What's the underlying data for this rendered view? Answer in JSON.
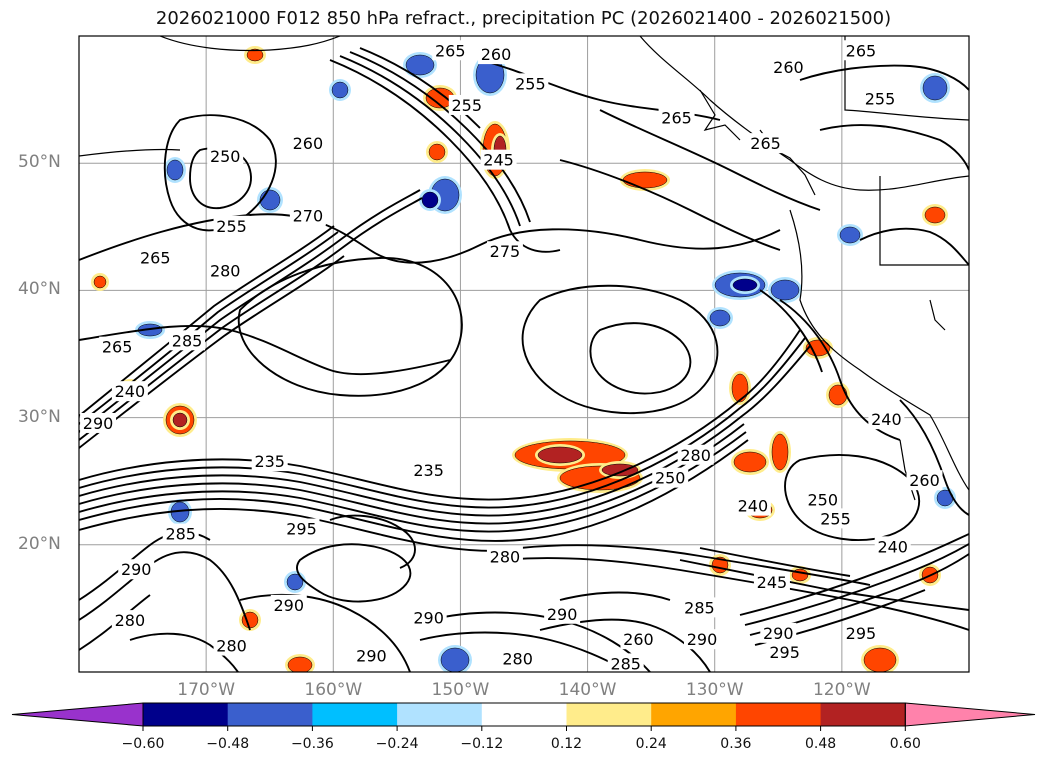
{
  "title": "2026021000 F012 850 hPa refract., precipitation PC (2026021400 - 2026021500)",
  "map": {
    "lon_range": [
      -180,
      -110
    ],
    "lat_range": [
      10,
      60
    ],
    "lat_labels": [
      {
        "lat": 50,
        "text": "50°N"
      },
      {
        "lat": 40,
        "text": "40°N"
      },
      {
        "lat": 30,
        "text": "30°N"
      },
      {
        "lat": 20,
        "text": "20°N"
      }
    ],
    "lon_labels": [
      {
        "lon": -170,
        "text": "170°W"
      },
      {
        "lon": -160,
        "text": "160°W"
      },
      {
        "lon": -150,
        "text": "150°W"
      },
      {
        "lon": -140,
        "text": "140°W"
      },
      {
        "lon": -130,
        "text": "130°W"
      },
      {
        "lon": -120,
        "text": "120°W"
      }
    ],
    "contour_labels": [
      {
        "text": "260",
        "lon": -147.2,
        "lat": 58.5
      },
      {
        "text": "255",
        "lon": -144.5,
        "lat": 56.2
      },
      {
        "text": "265",
        "lon": -150.8,
        "lat": 58.8
      },
      {
        "text": "260",
        "lon": -124.2,
        "lat": 57.5
      },
      {
        "text": "265",
        "lon": -118.5,
        "lat": 58.8
      },
      {
        "text": "255",
        "lon": -117.0,
        "lat": 55.0
      },
      {
        "text": "265",
        "lon": -133.0,
        "lat": 53.5
      },
      {
        "text": "265",
        "lon": -126.0,
        "lat": 51.5
      },
      {
        "text": "250",
        "lon": -168.5,
        "lat": 50.5
      },
      {
        "text": "260",
        "lon": -162.0,
        "lat": 51.5
      },
      {
        "text": "255",
        "lon": -149.5,
        "lat": 54.5
      },
      {
        "text": "245",
        "lon": -147.0,
        "lat": 50.2
      },
      {
        "text": "255",
        "lon": -168.0,
        "lat": 45.0
      },
      {
        "text": "265",
        "lon": -174.0,
        "lat": 42.5
      },
      {
        "text": "280",
        "lon": -168.5,
        "lat": 41.5
      },
      {
        "text": "270",
        "lon": -162.0,
        "lat": 45.8
      },
      {
        "text": "275",
        "lon": -146.5,
        "lat": 43.0
      },
      {
        "text": "265",
        "lon": -177.0,
        "lat": 35.5
      },
      {
        "text": "285",
        "lon": -171.5,
        "lat": 36.0
      },
      {
        "text": "290",
        "lon": -178.5,
        "lat": 29.5
      },
      {
        "text": "240",
        "lon": -176.0,
        "lat": 32.0
      },
      {
        "text": "235",
        "lon": -165.0,
        "lat": 26.5
      },
      {
        "text": "235",
        "lon": -152.5,
        "lat": 25.8
      },
      {
        "text": "240",
        "lon": -116.5,
        "lat": 29.8
      },
      {
        "text": "260",
        "lon": -113.5,
        "lat": 25.0
      },
      {
        "text": "280",
        "lon": -131.5,
        "lat": 27.0
      },
      {
        "text": "250",
        "lon": -133.5,
        "lat": 25.2
      },
      {
        "text": "240",
        "lon": -127.0,
        "lat": 23.0
      },
      {
        "text": "250",
        "lon": -121.5,
        "lat": 23.5
      },
      {
        "text": "255",
        "lon": -120.5,
        "lat": 22.0
      },
      {
        "text": "240",
        "lon": -116.0,
        "lat": 19.8
      },
      {
        "text": "295",
        "lon": -162.5,
        "lat": 21.2
      },
      {
        "text": "285",
        "lon": -172.0,
        "lat": 20.8
      },
      {
        "text": "280",
        "lon": -146.5,
        "lat": 19.0
      },
      {
        "text": "290",
        "lon": -175.5,
        "lat": 18.0
      },
      {
        "text": "290",
        "lon": -163.5,
        "lat": 15.2
      },
      {
        "text": "280",
        "lon": -176.0,
        "lat": 14.0
      },
      {
        "text": "290",
        "lon": -152.5,
        "lat": 14.2
      },
      {
        "text": "290",
        "lon": -142.0,
        "lat": 14.5
      },
      {
        "text": "285",
        "lon": -131.2,
        "lat": 15.0
      },
      {
        "text": "245",
        "lon": -125.5,
        "lat": 17.0
      },
      {
        "text": "290",
        "lon": -131.0,
        "lat": 12.5
      },
      {
        "text": "290",
        "lon": -125.0,
        "lat": 13.0
      },
      {
        "text": "295",
        "lon": -124.5,
        "lat": 11.5
      },
      {
        "text": "295",
        "lon": -118.5,
        "lat": 13.0
      },
      {
        "text": "260",
        "lon": -136.0,
        "lat": 12.5
      },
      {
        "text": "285",
        "lon": -137.0,
        "lat": 10.6
      },
      {
        "text": "290",
        "lon": -157.0,
        "lat": 11.2
      },
      {
        "text": "280",
        "lon": -168.0,
        "lat": 12.0
      },
      {
        "text": "280",
        "lon": -145.5,
        "lat": 11.0
      }
    ]
  },
  "colorbar": {
    "ticks": [
      "−0.60",
      "−0.48",
      "−0.36",
      "−0.24",
      "−0.12",
      "0.12",
      "0.24",
      "0.36",
      "0.48",
      "0.60"
    ],
    "colors": [
      "#9932cc",
      "#00008b",
      "#3a5fcd",
      "#00bfff",
      "#b0e2ff",
      "#ffffff",
      "#ffec8b",
      "#ffa500",
      "#ff4500",
      "#b22222",
      "#ff82ab"
    ]
  }
}
